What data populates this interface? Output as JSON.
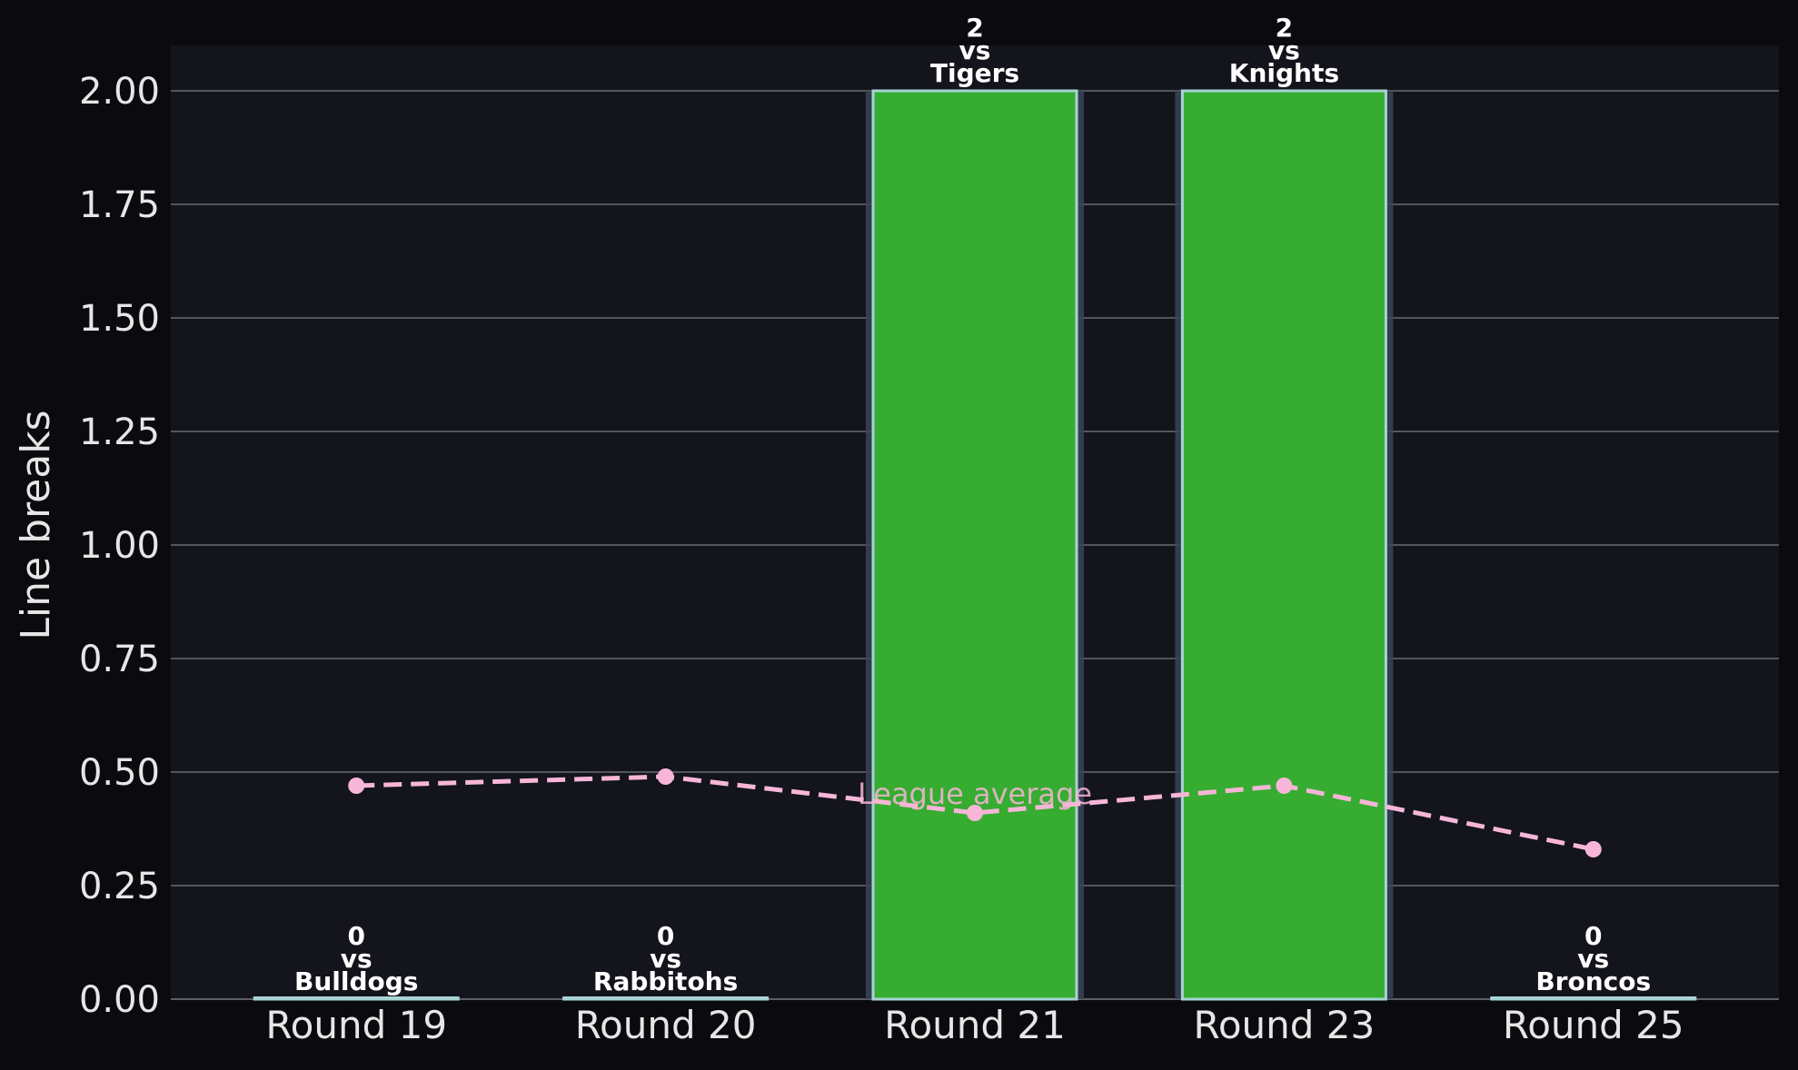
{
  "chart_data": {
    "type": "bar",
    "categories": [
      "Round 19",
      "Round 20",
      "Round 21",
      "Round 23",
      "Round 25"
    ],
    "values": [
      0,
      0,
      2,
      2,
      0
    ],
    "opponents": [
      "Bulldogs",
      "Rabbitohs",
      "Tigers",
      "Knights",
      "Broncos"
    ],
    "vs_word": "vs",
    "highlighted": [
      false,
      false,
      true,
      true,
      false
    ],
    "line_series": {
      "name": "League average",
      "values": [
        0.47,
        0.49,
        0.41,
        0.47,
        0.33
      ]
    },
    "ylabel": "Line breaks",
    "xlabel": "",
    "ylim": [
      0,
      2.1
    ],
    "yticks": [
      0.0,
      0.25,
      0.5,
      0.75,
      1.0,
      1.25,
      1.5,
      1.75,
      2.0
    ],
    "grid": true,
    "colors": {
      "page_background": "#0b0b0f",
      "plot_background": "#13141c",
      "bar": "#36ac30",
      "bar_edge": "#a8d4d4",
      "highlight_band": "#3a4458",
      "line": "#f7b6d8",
      "grid": "#6b6b72",
      "axis_text": "#e6e6e6",
      "label_text": "#ffffff"
    }
  }
}
